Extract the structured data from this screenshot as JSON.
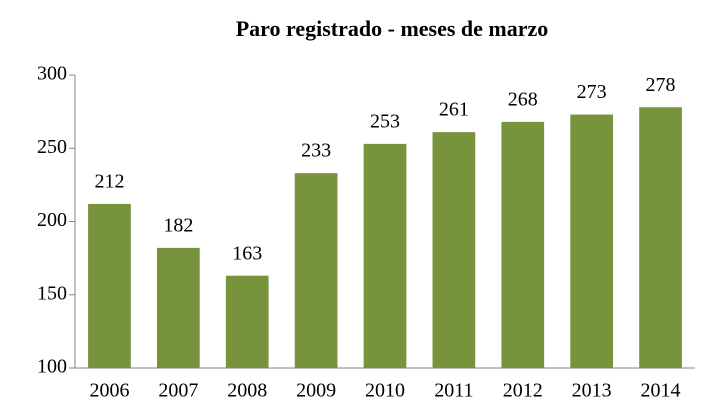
{
  "chart_data": {
    "type": "bar",
    "title": "Paro registrado - meses de marzo",
    "categories": [
      "2006",
      "2007",
      "2008",
      "2009",
      "2010",
      "2011",
      "2012",
      "2013",
      "2014"
    ],
    "values": [
      212,
      182,
      163,
      233,
      253,
      261,
      268,
      273,
      278
    ],
    "color": "#77933c",
    "ylim": [
      100,
      300
    ],
    "yticks": [
      100,
      150,
      200,
      250,
      300
    ],
    "grid": false
  }
}
